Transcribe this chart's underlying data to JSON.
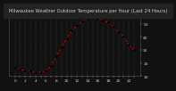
{
  "title": "Milwaukee Weather Outdoor Temperature per Hour (Last 24 Hours)",
  "hours": [
    0,
    1,
    2,
    3,
    4,
    5,
    6,
    7,
    8,
    9,
    10,
    11,
    12,
    13,
    14,
    15,
    16,
    17,
    18,
    19,
    20,
    21,
    22,
    23
  ],
  "temps": [
    16,
    15,
    14,
    14,
    13,
    13,
    14,
    18,
    25,
    32,
    39,
    45,
    49,
    52,
    54,
    55,
    54,
    53,
    51,
    48,
    44,
    40,
    34,
    30
  ],
  "line_color": "#cc0000",
  "marker_color": "#000000",
  "grid_color": "#555555",
  "bg_color": "#111111",
  "plot_bg": "#111111",
  "title_color": "#cccccc",
  "yaxis_color": "#cccccc",
  "ylim": [
    10,
    58
  ],
  "ytick_vals": [
    10,
    20,
    30,
    40,
    50
  ],
  "ytick_labels": [
    "10",
    "20",
    "30",
    "40",
    "50"
  ],
  "title_fontsize": 3.8,
  "tick_fontsize": 3.2,
  "line_width": 0.7,
  "marker_size": 1.8
}
